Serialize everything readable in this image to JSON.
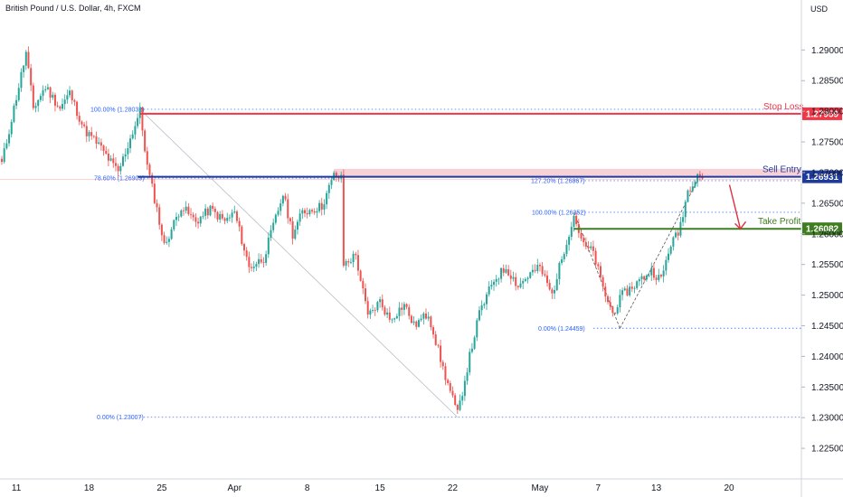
{
  "header": {
    "title": "British Pound / U.S. Dollar, 4h, FXCM",
    "currency": "USD"
  },
  "chart_data": {
    "type": "candlestick",
    "symbol": "British Pound / U.S. Dollar",
    "interval": "4h",
    "source": "FXCM",
    "ylim": [
      1.22,
      1.2958
    ],
    "y_ticks": [
      1.29,
      1.285,
      1.28,
      1.275,
      1.27,
      1.265,
      1.26,
      1.255,
      1.25,
      1.245,
      1.24,
      1.235,
      1.23,
      1.225
    ],
    "y_tick_labels": [
      "1.29000",
      "1.28500",
      "1.28000",
      "1.27500",
      "1.27000",
      "1.26500",
      "1.26000",
      "1.25500",
      "1.25000",
      "1.24500",
      "1.24000",
      "1.23500",
      "1.23000",
      "1.22500"
    ],
    "x_tick_labels": [
      {
        "label": "11",
        "bar": 6
      },
      {
        "label": "18",
        "bar": 36
      },
      {
        "label": "25",
        "bar": 66
      },
      {
        "label": "Apr",
        "bar": 96
      },
      {
        "label": "8",
        "bar": 126
      },
      {
        "label": "15",
        "bar": 156
      },
      {
        "label": "22",
        "bar": 186
      },
      {
        "label": "May",
        "bar": 222
      },
      {
        "label": "7",
        "bar": 246
      },
      {
        "label": "13",
        "bar": 270
      },
      {
        "label": "20",
        "bar": 300
      }
    ],
    "pivots": [
      {
        "bar": 0,
        "price": 1.2715
      },
      {
        "bar": 10,
        "price": 1.2895
      },
      {
        "bar": 13,
        "price": 1.2805
      },
      {
        "bar": 18,
        "price": 1.284
      },
      {
        "bar": 24,
        "price": 1.2805
      },
      {
        "bar": 28,
        "price": 1.283
      },
      {
        "bar": 34,
        "price": 1.277
      },
      {
        "bar": 40,
        "price": 1.2745
      },
      {
        "bar": 48,
        "price": 1.27
      },
      {
        "bar": 57,
        "price": 1.28
      },
      {
        "bar": 60,
        "price": 1.271
      },
      {
        "bar": 64,
        "price": 1.264
      },
      {
        "bar": 67,
        "price": 1.258
      },
      {
        "bar": 74,
        "price": 1.2645
      },
      {
        "bar": 80,
        "price": 1.262
      },
      {
        "bar": 86,
        "price": 1.264
      },
      {
        "bar": 92,
        "price": 1.262
      },
      {
        "bar": 96,
        "price": 1.2635
      },
      {
        "bar": 102,
        "price": 1.2545
      },
      {
        "bar": 108,
        "price": 1.256
      },
      {
        "bar": 116,
        "price": 1.2665
      },
      {
        "bar": 120,
        "price": 1.26
      },
      {
        "bar": 124,
        "price": 1.2635
      },
      {
        "bar": 132,
        "price": 1.2645
      },
      {
        "bar": 137,
        "price": 1.2695
      },
      {
        "bar": 140,
        "price": 1.269
      },
      {
        "bar": 141,
        "price": 1.255
      },
      {
        "bar": 146,
        "price": 1.2565
      },
      {
        "bar": 151,
        "price": 1.2465
      },
      {
        "bar": 156,
        "price": 1.249
      },
      {
        "bar": 160,
        "price": 1.246
      },
      {
        "bar": 166,
        "price": 1.2485
      },
      {
        "bar": 170,
        "price": 1.245
      },
      {
        "bar": 176,
        "price": 1.247
      },
      {
        "bar": 182,
        "price": 1.238
      },
      {
        "bar": 188,
        "price": 1.2305
      },
      {
        "bar": 193,
        "price": 1.24
      },
      {
        "bar": 197,
        "price": 1.247
      },
      {
        "bar": 203,
        "price": 1.2525
      },
      {
        "bar": 208,
        "price": 1.2545
      },
      {
        "bar": 213,
        "price": 1.2515
      },
      {
        "bar": 218,
        "price": 1.2535
      },
      {
        "bar": 222,
        "price": 1.2545
      },
      {
        "bar": 227,
        "price": 1.25
      },
      {
        "bar": 232,
        "price": 1.2575
      },
      {
        "bar": 236,
        "price": 1.263
      },
      {
        "bar": 240,
        "price": 1.258
      },
      {
        "bar": 244,
        "price": 1.257
      },
      {
        "bar": 248,
        "price": 1.251
      },
      {
        "bar": 252,
        "price": 1.247
      },
      {
        "bar": 256,
        "price": 1.25
      },
      {
        "bar": 262,
        "price": 1.252
      },
      {
        "bar": 268,
        "price": 1.254
      },
      {
        "bar": 272,
        "price": 1.2525
      },
      {
        "bar": 276,
        "price": 1.2585
      },
      {
        "bar": 279,
        "price": 1.26
      },
      {
        "bar": 283,
        "price": 1.267
      },
      {
        "bar": 287,
        "price": 1.27
      },
      {
        "bar": 289,
        "price": 1.269
      }
    ],
    "horizontal_lines": [
      {
        "name": "Stop Loss",
        "price": 1.27959,
        "tag": "1.27959",
        "color": "#f23645"
      },
      {
        "name": "Sell Entry",
        "price": 1.26931,
        "tag": "1.26931",
        "color": "#1e3a9c"
      },
      {
        "name": "Take Profit",
        "price": 1.26082,
        "tag": "1.26082",
        "color": "#3f7d20"
      }
    ],
    "sell_zone": {
      "top": 1.2706,
      "bottom": 1.26931,
      "color": "#f5c2c8"
    },
    "fib_levels": [
      {
        "label": "100.00% (1.28032)",
        "price": 1.28032
      },
      {
        "label": "78.60% (1.26909)",
        "price": 1.26909
      },
      {
        "label": "0.00% (1.23007)",
        "price": 1.23007
      },
      {
        "label": "127.20% (1.26867)",
        "price": 1.26867
      },
      {
        "label": "100.00% (1.26352)",
        "price": 1.26352
      },
      {
        "label": "0.00% (1.24459)",
        "price": 1.24459
      }
    ],
    "colors": {
      "up": "#26a69a",
      "down": "#ef5350",
      "fib": "#2962ff",
      "arrow": "#e0303e",
      "grid": "#ffffff"
    }
  }
}
